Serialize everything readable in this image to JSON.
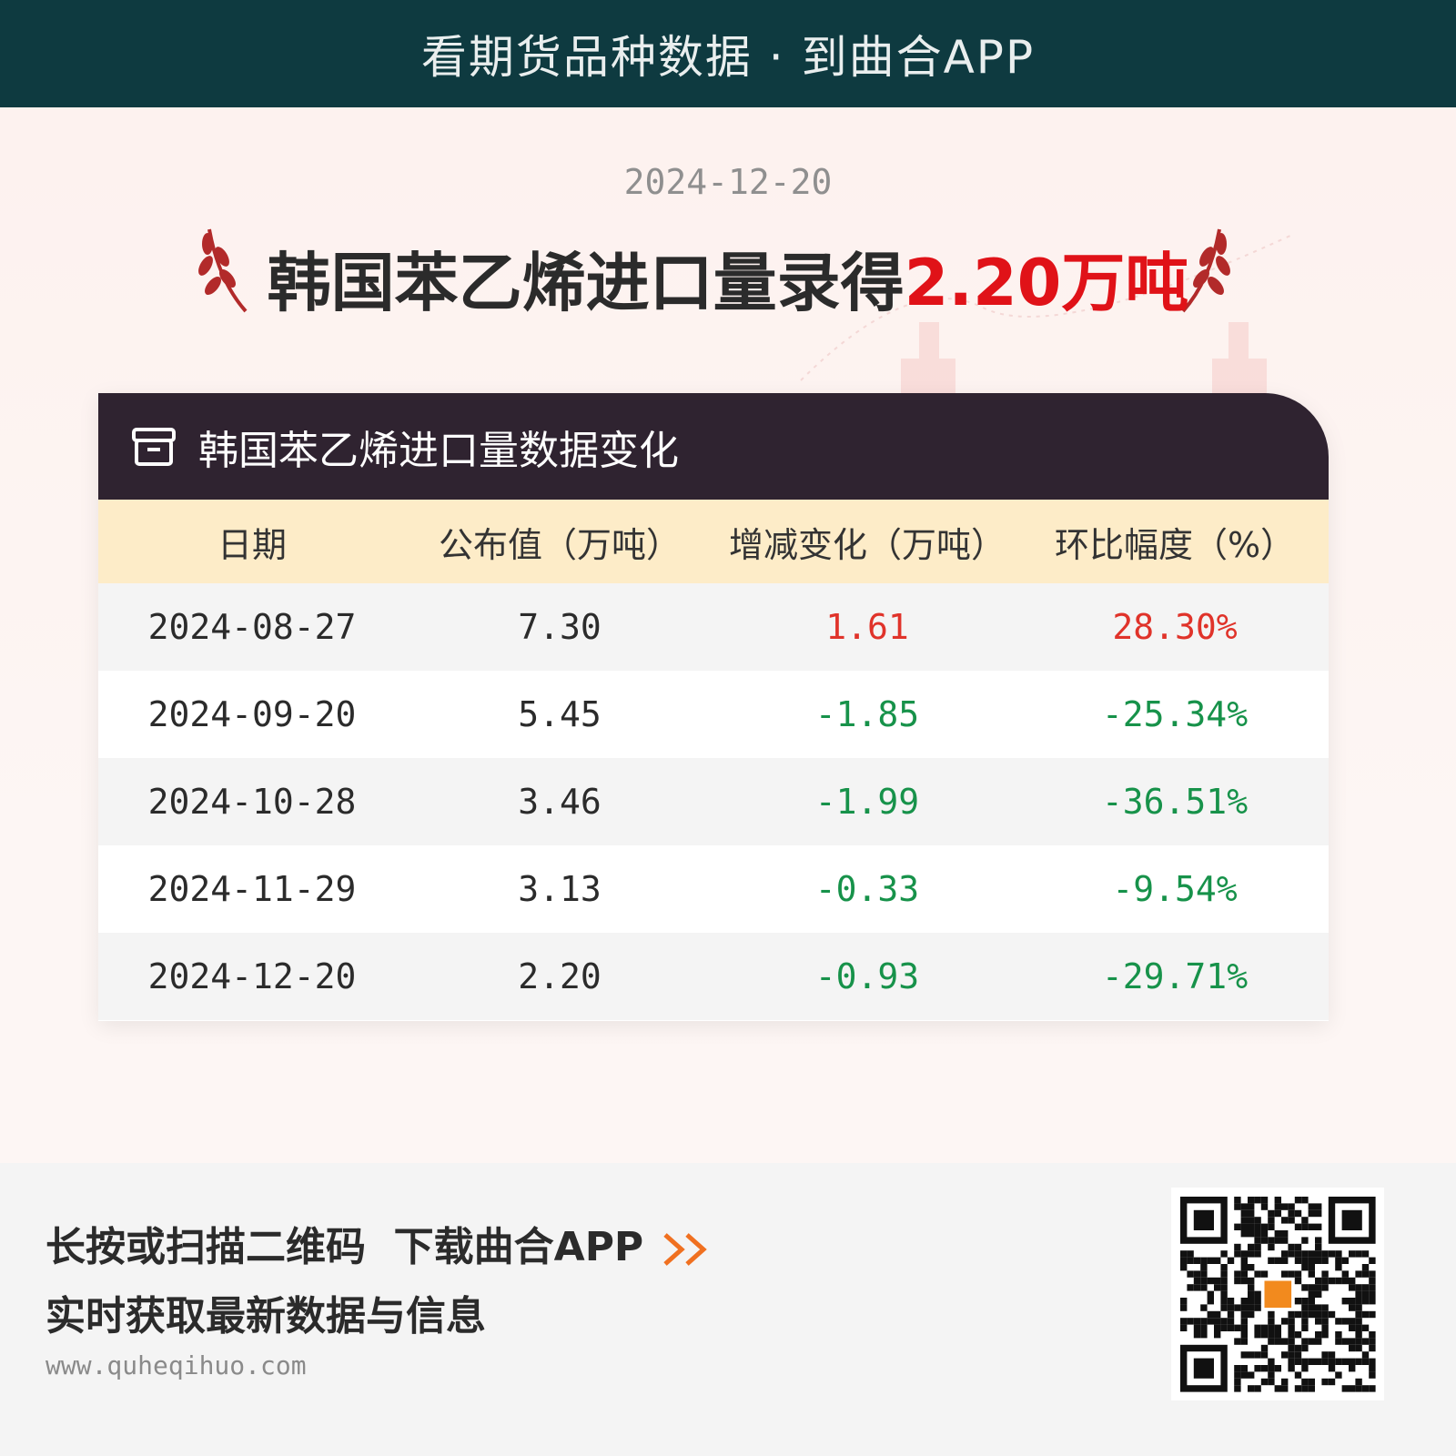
{
  "header": {
    "banner": "看期货品种数据 · 到曲合APP"
  },
  "date": "2024-12-20",
  "headline": {
    "text": "韩国苯乙烯进口量录得",
    "highlight": "2.20万吨"
  },
  "table": {
    "title": "韩国苯乙烯进口量数据变化",
    "columns": [
      "日期",
      "公布值（万吨）",
      "增减变化（万吨）",
      "环比幅度（%）"
    ],
    "rows": [
      [
        "2024-08-27",
        "7.30",
        "1.61",
        "28.30%"
      ],
      [
        "2024-09-20",
        "5.45",
        "-1.85",
        "-25.34%"
      ],
      [
        "2024-10-28",
        "3.46",
        "-1.99",
        "-36.51%"
      ],
      [
        "2024-11-29",
        "3.13",
        "-0.33",
        "-9.54%"
      ],
      [
        "2024-12-20",
        "2.20",
        "-0.93",
        "-29.71%"
      ]
    ],
    "colors": {
      "up": "#e0332a",
      "down": "#17924a"
    }
  },
  "footer": {
    "line1": "长按或扫描二维码  下载曲合APP",
    "line2": "实时获取最新数据与信息",
    "url": "www.quheqihuo.com"
  }
}
